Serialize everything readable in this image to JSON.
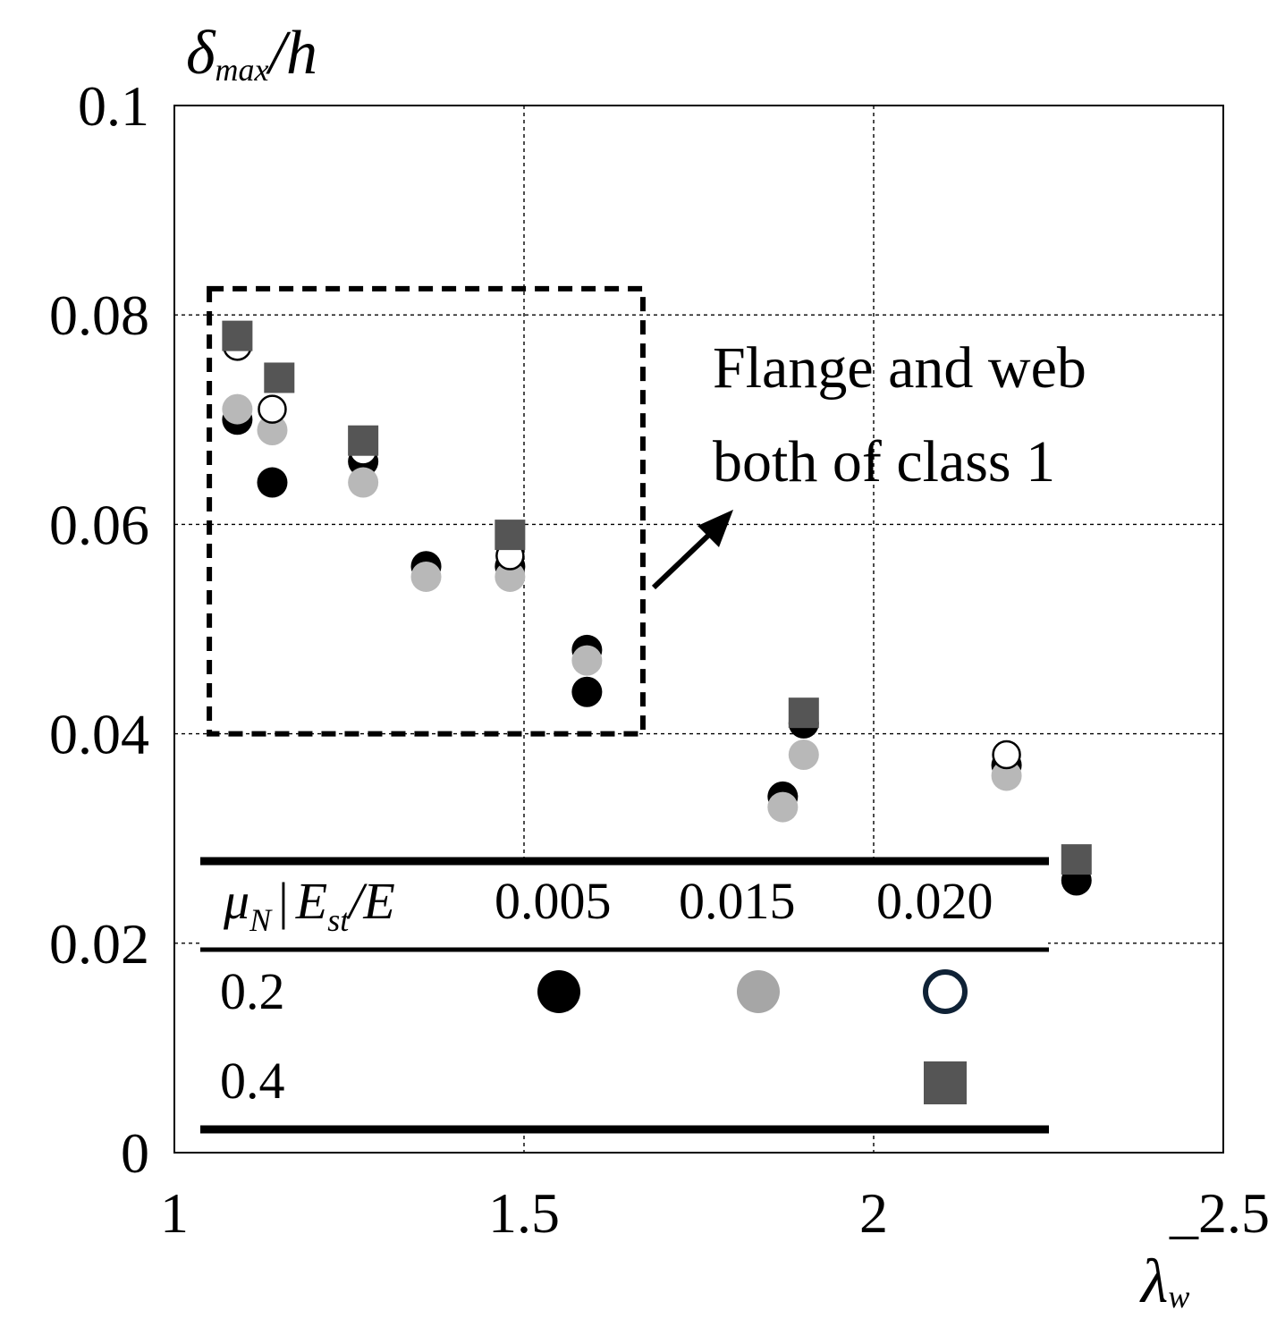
{
  "chart_data": {
    "type": "scatter",
    "ylabel": {
      "main": "δ",
      "sub": "max",
      "rest": "/h"
    },
    "xlabel": {
      "main": "λ",
      "sub": "w"
    },
    "xlim": [
      1,
      2.5
    ],
    "ylim": [
      0,
      0.1
    ],
    "x_ticks": [
      "1",
      "1.5",
      "2",
      "_2.5"
    ],
    "y_ticks": [
      "0",
      "0.02",
      "0.04",
      "0.06",
      "0.08",
      "0.1"
    ],
    "grid": true,
    "series": [
      {
        "marker": "filled-circle",
        "color": "#000000",
        "x": [
          1.09,
          1.14,
          1.27,
          1.36,
          1.48,
          1.59,
          1.59,
          1.87,
          1.9,
          2.19,
          2.29
        ],
        "y": [
          0.07,
          0.064,
          0.066,
          0.056,
          0.056,
          0.048,
          0.044,
          0.034,
          0.041,
          0.037,
          0.026
        ]
      },
      {
        "marker": "filled-circle",
        "color": "#b8b8b8",
        "x": [
          1.09,
          1.14,
          1.27,
          1.36,
          1.48,
          1.59,
          1.87,
          1.9,
          2.19
        ],
        "y": [
          0.071,
          0.069,
          0.064,
          0.055,
          0.055,
          0.047,
          0.033,
          0.038,
          0.036
        ]
      },
      {
        "marker": "open-circle",
        "color": "#000000",
        "x": [
          1.09,
          1.14,
          1.27,
          1.48,
          2.19
        ],
        "y": [
          0.077,
          0.071,
          0.067,
          0.057,
          0.038
        ]
      },
      {
        "marker": "square",
        "color": "#555555",
        "x": [
          1.09,
          1.15,
          1.27,
          1.48,
          1.9,
          2.29
        ],
        "y": [
          0.078,
          0.074,
          0.068,
          0.059,
          0.042,
          0.028
        ]
      }
    ],
    "highlight_box": {
      "x_range": [
        1.05,
        1.67
      ],
      "y_range": [
        0.04,
        0.0825
      ]
    },
    "annotation": {
      "lines": [
        "Flange and web",
        "both of class 1"
      ]
    },
    "legend_table": {
      "header": {
        "mu": "μ",
        "mu_sub": "N",
        "sep": "|",
        "E": "E",
        "E_sub": "st",
        "E_rest": "/E",
        "columns": [
          "0.005",
          "0.015",
          "0.020"
        ]
      },
      "rows": [
        {
          "label": "0.2",
          "markers": [
            {
              "marker": "filled-circle",
              "color": "#000000"
            },
            {
              "marker": "filled-circle",
              "color": "#a6a6a6"
            },
            {
              "marker": "open-circle",
              "color": "#0f2236"
            }
          ]
        },
        {
          "label": "0.4",
          "markers": [
            {
              "marker": "none"
            },
            {
              "marker": "none"
            },
            {
              "marker": "square",
              "color": "#555555"
            }
          ]
        }
      ]
    }
  }
}
